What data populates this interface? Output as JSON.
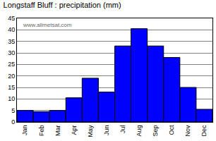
{
  "chart_data": {
    "type": "bar",
    "title": "Longstaff Bluff : precipitation (mm)",
    "categories": [
      "Jan",
      "Feb",
      "Mar",
      "Apr",
      "May",
      "Jun",
      "Jul",
      "Aug",
      "Sep",
      "Oct",
      "Nov",
      "Dec"
    ],
    "values": [
      5,
      4.5,
      5,
      10.5,
      19,
      13,
      33,
      40.5,
      33,
      28,
      15,
      5.5
    ],
    "color": "#0000ff",
    "ylim": [
      0,
      45
    ],
    "yticks": [
      0,
      5,
      10,
      15,
      20,
      25,
      30,
      35,
      40,
      45
    ],
    "grid": true,
    "annotations": [
      "www.allmetsat.com"
    ]
  }
}
